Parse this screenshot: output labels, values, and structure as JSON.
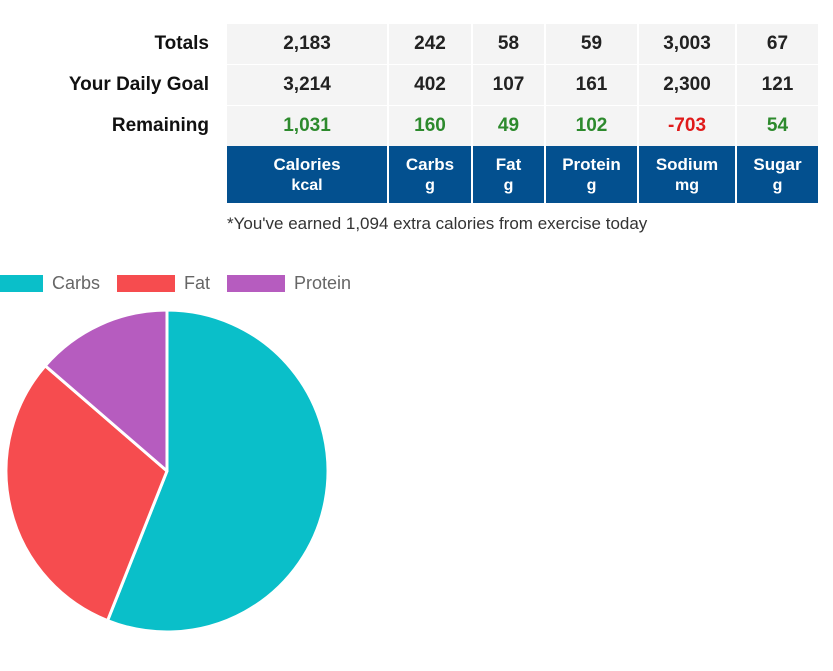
{
  "table": {
    "rows": [
      {
        "label": "Totals",
        "values": [
          "2,183",
          "242",
          "58",
          "59",
          "3,003",
          "67"
        ],
        "kind": [
          "n",
          "n",
          "n",
          "n",
          "n",
          "n"
        ]
      },
      {
        "label": "Your Daily Goal",
        "values": [
          "3,214",
          "402",
          "107",
          "161",
          "2,300",
          "121"
        ],
        "kind": [
          "n",
          "n",
          "n",
          "n",
          "n",
          "n"
        ]
      },
      {
        "label": "Remaining",
        "values": [
          "1,031",
          "160",
          "49",
          "102",
          "-703",
          "54"
        ],
        "kind": [
          "pos",
          "pos",
          "pos",
          "pos",
          "neg",
          "pos"
        ]
      }
    ],
    "columns": [
      {
        "name": "Calories",
        "unit": "kcal"
      },
      {
        "name": "Carbs",
        "unit": "g"
      },
      {
        "name": "Fat",
        "unit": "g"
      },
      {
        "name": "Protein",
        "unit": "g"
      },
      {
        "name": "Sodium",
        "unit": "mg"
      },
      {
        "name": "Sugar",
        "unit": "g"
      }
    ]
  },
  "footnote": "*You've earned 1,094 extra calories from exercise today",
  "colors": {
    "header_bg": "#03508f",
    "positive": "#2d8a2d",
    "negative": "#e01a1a",
    "carbs": "#0abfc9",
    "fat": "#f64c4f",
    "protein": "#b65cbf"
  },
  "chart_data": {
    "type": "pie",
    "legend_placement": "top-left",
    "slices": [
      {
        "name": "Carbs",
        "value": 242,
        "color": "#0abfc9"
      },
      {
        "name": "Fat",
        "value": 131,
        "color": "#f64c4f"
      },
      {
        "name": "Protein",
        "value": 59,
        "color": "#b65cbf"
      }
    ]
  }
}
